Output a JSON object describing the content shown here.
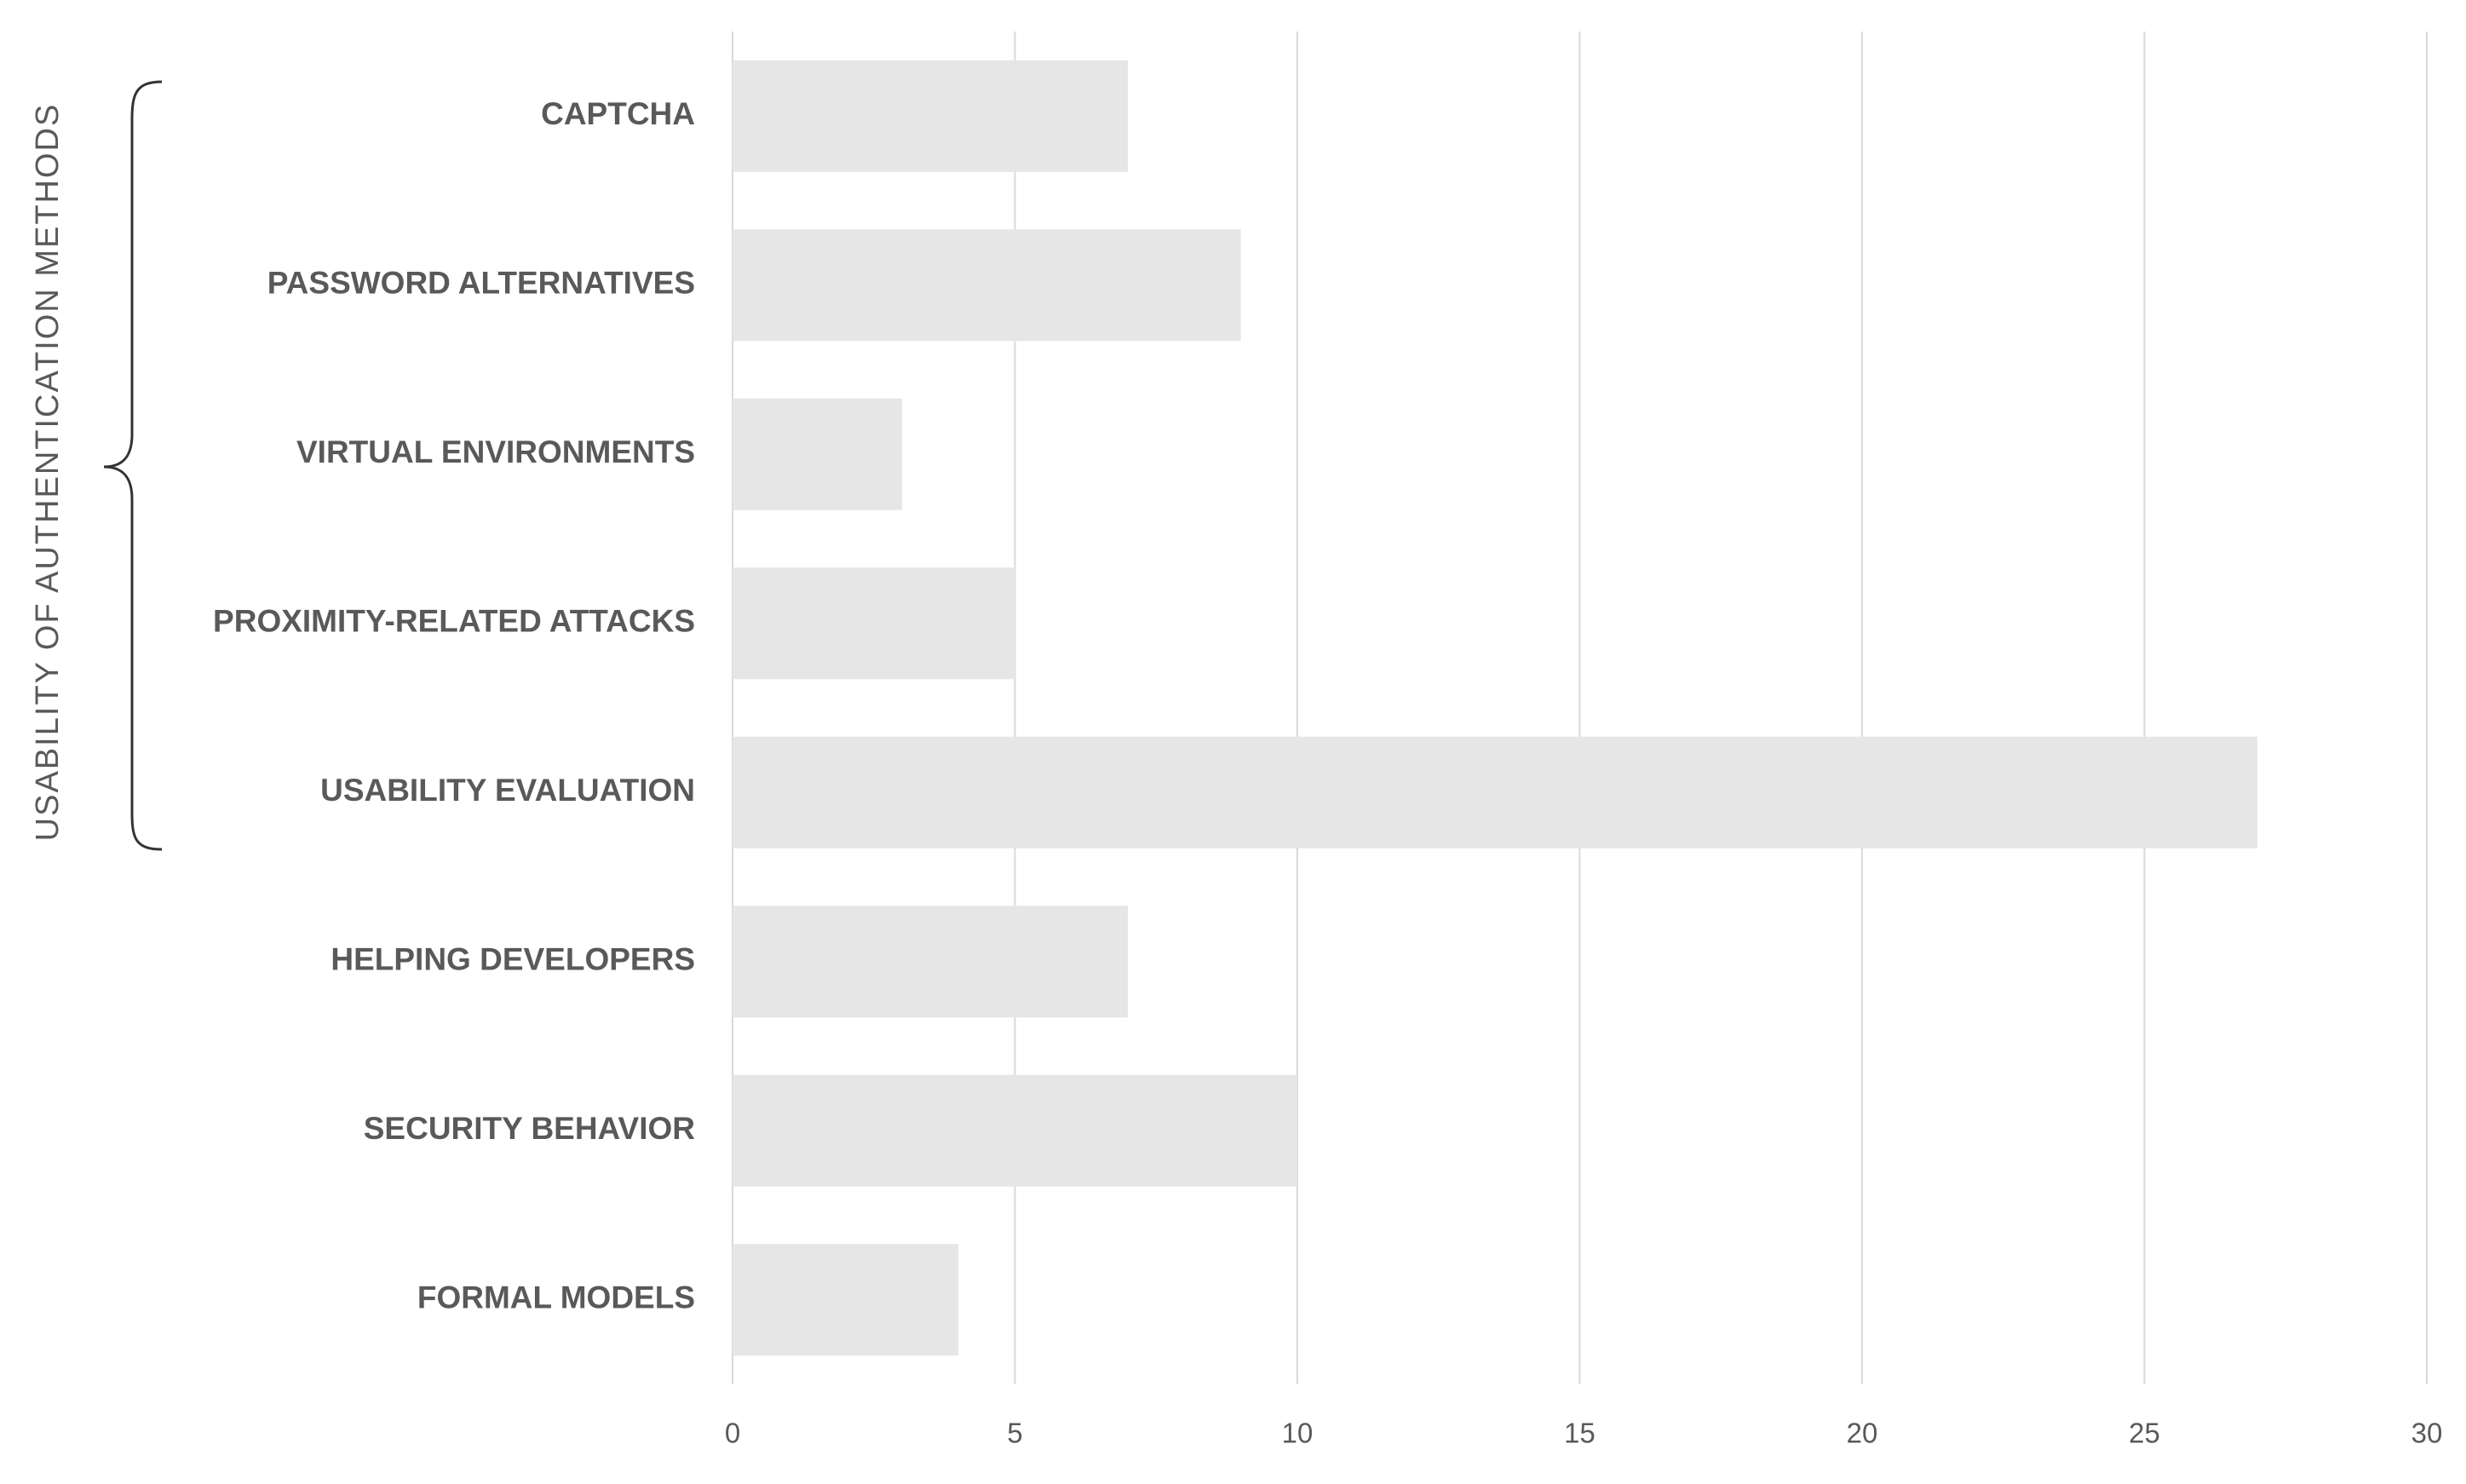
{
  "chart_data": {
    "type": "bar",
    "orientation": "horizontal",
    "group_label": "USABILITY  OF  AUTHENTICATION  METHODS",
    "categories": [
      "CAPTCHA",
      "PASSWORD ALTERNATIVES",
      "VIRTUAL ENVIRONMENTS",
      "PROXIMITY-RELATED ATTACKS",
      "USABILITY EVALUATION",
      "HELPING DEVELOPERS",
      "SECURITY BEHAVIOR",
      "FORMAL MODELS"
    ],
    "values": [
      7,
      9,
      3,
      5,
      27,
      7,
      10,
      4
    ],
    "color": "#e6e6e6",
    "xlim": [
      0,
      30
    ],
    "xticks": [
      0,
      5,
      10,
      15,
      20,
      25,
      30
    ],
    "grid": true
  }
}
